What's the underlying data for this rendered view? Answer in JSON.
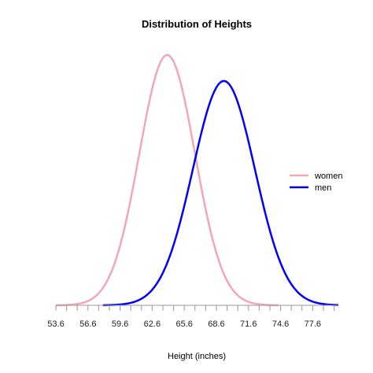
{
  "chart_data": {
    "type": "line",
    "title": "Distribution of Heights",
    "xlabel": "Height (inches)",
    "ylabel": "",
    "xlim": [
      53.6,
      80.0
    ],
    "xticks": [
      53.6,
      54.6,
      55.6,
      56.6,
      57.6,
      58.6,
      59.6,
      60.6,
      61.6,
      62.6,
      63.6,
      64.6,
      65.6,
      66.6,
      67.6,
      68.6,
      69.6,
      70.6,
      71.6,
      72.6,
      73.6,
      74.6,
      75.6,
      76.6,
      77.6,
      78.6,
      79.6
    ],
    "xtick_labels": [
      "53.6",
      "56.6",
      "59.6",
      "62.6",
      "65.6",
      "68.6",
      "71.6",
      "74.6",
      "77.6"
    ],
    "yaxis_shown": false,
    "grid": false,
    "legend_position": "right",
    "series": [
      {
        "name": "women",
        "color": "#f4a6b8",
        "distribution": "normal",
        "mean": 64.0,
        "sd": 2.6,
        "x_range": [
          53.6,
          74.4
        ]
      },
      {
        "name": "men",
        "color": "#0000ff",
        "distribution": "normal",
        "mean": 69.3,
        "sd": 2.9,
        "x_range": [
          58.0,
          80.0
        ]
      }
    ]
  }
}
